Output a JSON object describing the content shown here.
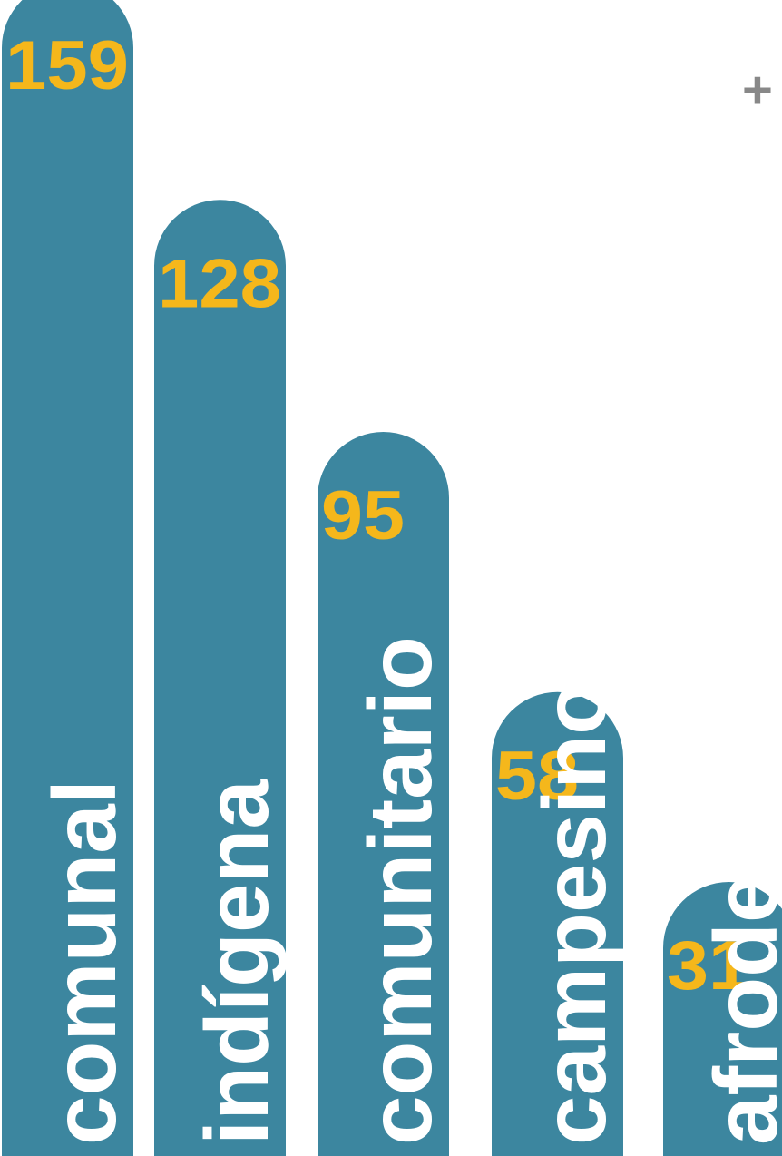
{
  "chart_data": {
    "type": "bar",
    "orientation": "vertical",
    "categories": [
      "comunal",
      "indígena",
      "comunitario",
      "campesino",
      "afrodescendiente"
    ],
    "values": [
      159,
      128,
      95,
      58,
      31
    ],
    "title": "",
    "xlabel": "",
    "ylabel": "",
    "grid": false,
    "legend": "none",
    "bar_color": "#3c869f",
    "value_color": "#f5b71b",
    "label_color": "#ffffff",
    "marker_color": "#888888"
  },
  "annotations": {
    "plus_marker": "+"
  }
}
